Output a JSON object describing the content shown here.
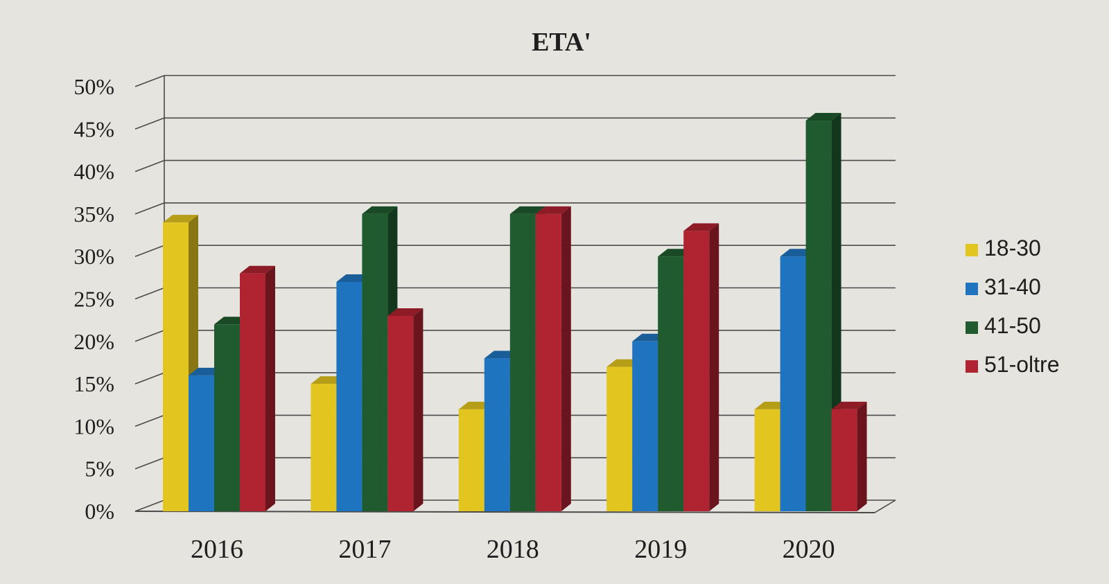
{
  "chart_data": {
    "type": "bar",
    "title": "ETA'",
    "xlabel": "",
    "ylabel": "",
    "categories": [
      "2016",
      "2017",
      "2018",
      "2019",
      "2020"
    ],
    "series": [
      {
        "name": "18-30",
        "values": [
          34,
          15,
          12,
          17,
          12
        ],
        "color": "#e3c51f"
      },
      {
        "name": "31-40",
        "values": [
          16,
          27,
          18,
          20,
          30
        ],
        "color": "#1f74bf"
      },
      {
        "name": "41-50",
        "values": [
          22,
          35,
          35,
          30,
          46
        ],
        "color": "#1f5b2e"
      },
      {
        "name": "51-oltre",
        "values": [
          28,
          23,
          35,
          33,
          12
        ],
        "color": "#b02331"
      }
    ],
    "ylim": [
      0,
      50
    ],
    "yticks": [
      "0%",
      "5%",
      "10%",
      "15%",
      "20%",
      "25%",
      "30%",
      "35%",
      "40%",
      "45%",
      "50%"
    ],
    "grid": true,
    "legend": "right",
    "style": "3d-clustered-column"
  }
}
